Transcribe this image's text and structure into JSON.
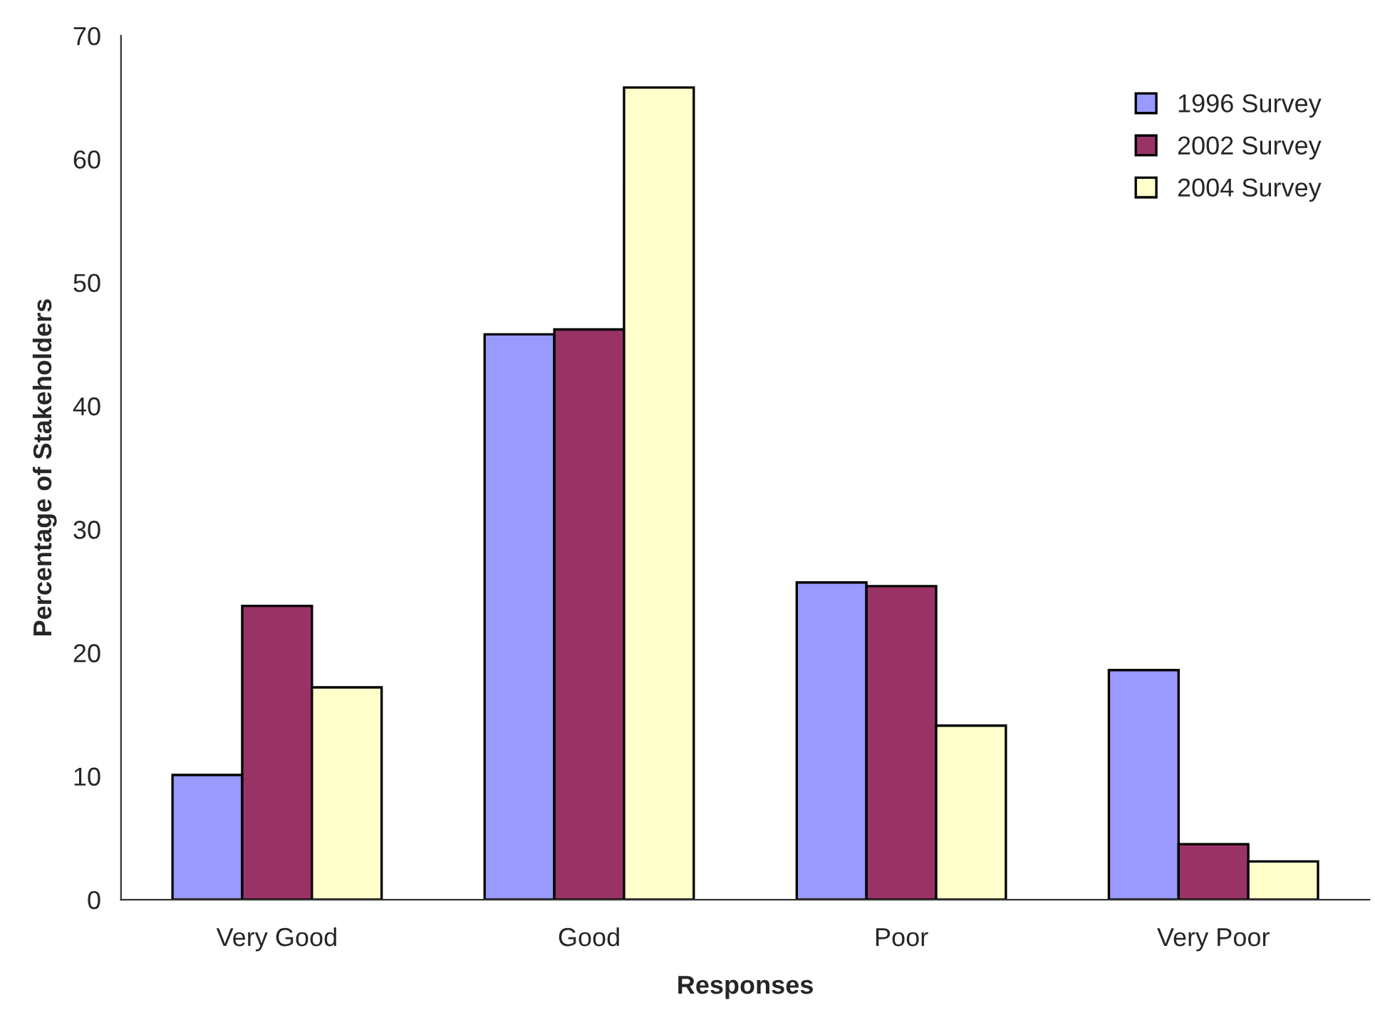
{
  "chart_data": {
    "type": "bar",
    "xlabel": "Responses",
    "ylabel": "Percentage of Stakeholders",
    "categories": [
      "Very Good",
      "Good",
      "Poor",
      "Very Poor"
    ],
    "series": [
      {
        "name": "1996 Survey",
        "color": "#9999ff",
        "values": [
          10.1,
          45.8,
          25.7,
          18.6
        ]
      },
      {
        "name": "2002 Survey",
        "color": "#993366",
        "values": [
          23.8,
          46.2,
          25.4,
          4.5
        ]
      },
      {
        "name": "2004 Survey",
        "color": "#ffffcc",
        "values": [
          17.2,
          65.8,
          14.1,
          3.1
        ]
      }
    ],
    "ylim": [
      0,
      70
    ],
    "yticks": [
      0,
      10,
      20,
      30,
      40,
      50,
      60,
      70
    ],
    "grid": false,
    "legend": "top right"
  }
}
